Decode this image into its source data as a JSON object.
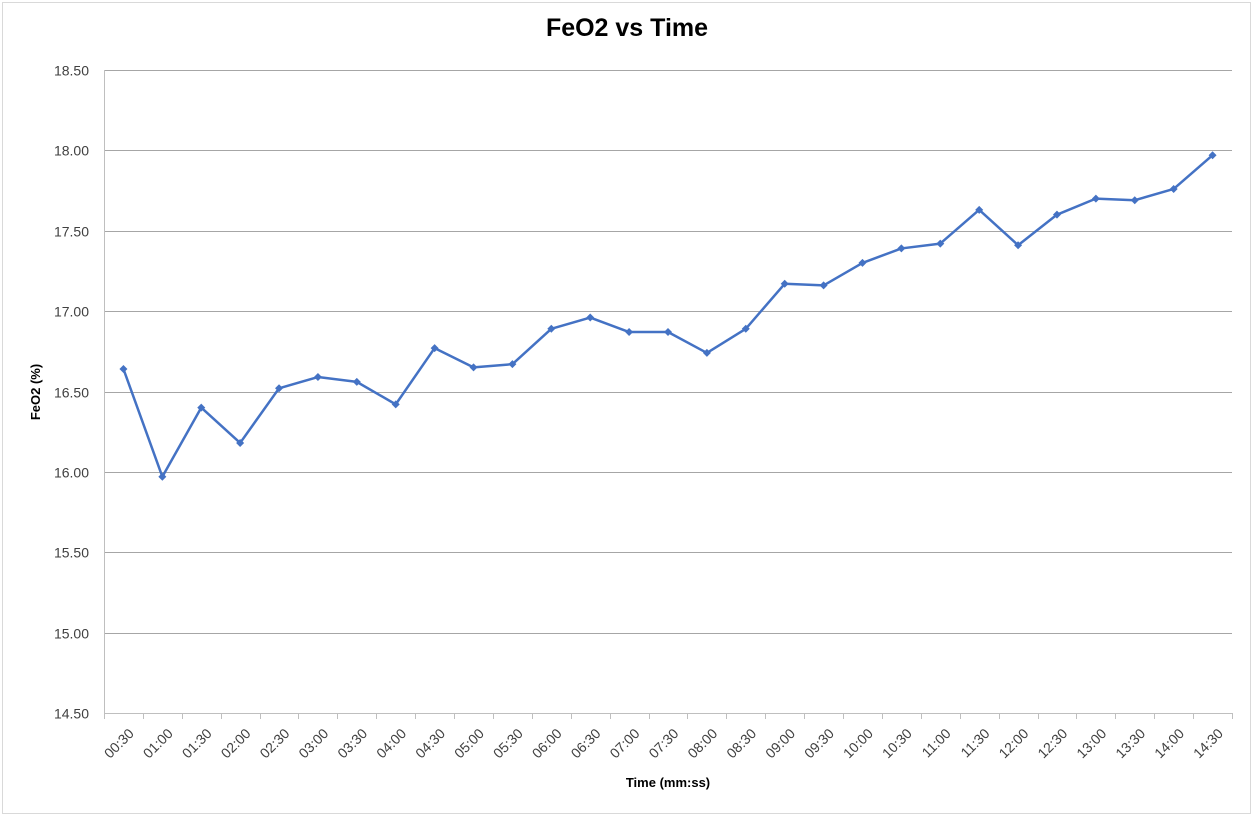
{
  "chart_data": {
    "type": "line",
    "title": "FeO2 vs Time",
    "xlabel": "Time (mm:ss)",
    "ylabel": "FeO2 (%)",
    "ylim": [
      14.5,
      18.5
    ],
    "yticks": [
      "14.50",
      "15.00",
      "15.50",
      "16.00",
      "16.50",
      "17.00",
      "17.50",
      "18.00",
      "18.50"
    ],
    "grid": "horizontal",
    "legend": "none",
    "categories": [
      "00:30",
      "01:00",
      "01:30",
      "02:00",
      "02:30",
      "03:00",
      "03:30",
      "04:00",
      "04:30",
      "05:00",
      "05:30",
      "06:00",
      "06:30",
      "07:00",
      "07:30",
      "08:00",
      "08:30",
      "09:00",
      "09:30",
      "10:00",
      "10:30",
      "11:00",
      "11:30",
      "12:00",
      "12:30",
      "13:00",
      "13:30",
      "14:00",
      "14:30"
    ],
    "series": [
      {
        "color": "#4472C4",
        "values": [
          16.64,
          15.97,
          16.4,
          16.18,
          16.52,
          16.59,
          16.56,
          16.42,
          16.77,
          16.65,
          16.67,
          16.89,
          16.96,
          16.87,
          16.87,
          16.74,
          16.89,
          17.17,
          17.16,
          17.3,
          17.39,
          17.42,
          17.63,
          17.41,
          17.6,
          17.7,
          17.69,
          17.76,
          17.97
        ]
      }
    ]
  }
}
